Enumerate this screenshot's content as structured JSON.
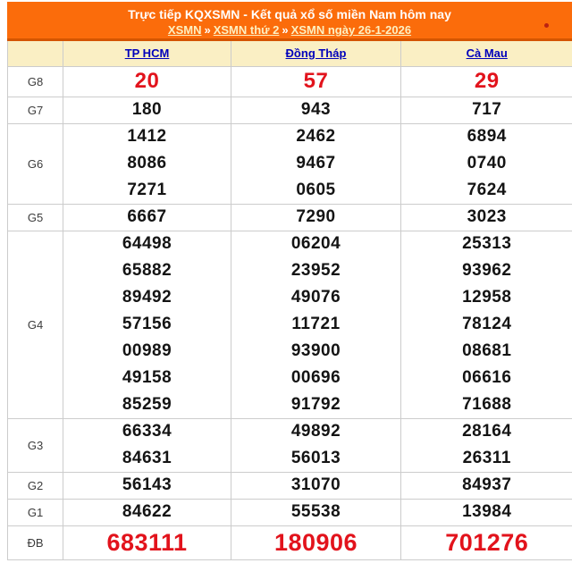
{
  "header": {
    "title": "Trực tiếp KQXSMN - Kết quả xổ số miền Nam hôm nay",
    "separator": "»",
    "breadcrumb": [
      {
        "label": "XSMN"
      },
      {
        "label": "XSMN thứ 2"
      },
      {
        "label": "XSMN ngày 26-1-2026"
      }
    ]
  },
  "table": {
    "columns": [
      "TP HCM",
      "Đồng Tháp",
      "Cà Mau"
    ],
    "groups": [
      {
        "label": "G8",
        "style": "g8",
        "rows": [
          [
            "20",
            "57",
            "29"
          ]
        ]
      },
      {
        "label": "G7",
        "style": "",
        "rows": [
          [
            "180",
            "943",
            "717"
          ]
        ]
      },
      {
        "label": "G6",
        "style": "",
        "rows": [
          [
            "1412",
            "2462",
            "6894"
          ],
          [
            "8086",
            "9467",
            "0740"
          ],
          [
            "7271",
            "0605",
            "7624"
          ]
        ]
      },
      {
        "label": "G5",
        "style": "",
        "rows": [
          [
            "6667",
            "7290",
            "3023"
          ]
        ]
      },
      {
        "label": "G4",
        "style": "",
        "rows": [
          [
            "64498",
            "06204",
            "25313"
          ],
          [
            "65882",
            "23952",
            "93962"
          ],
          [
            "89492",
            "49076",
            "12958"
          ],
          [
            "57156",
            "11721",
            "78124"
          ],
          [
            "00989",
            "93900",
            "08681"
          ],
          [
            "49158",
            "00696",
            "06616"
          ],
          [
            "85259",
            "91792",
            "71688"
          ]
        ]
      },
      {
        "label": "G3",
        "style": "",
        "rows": [
          [
            "66334",
            "49892",
            "28164"
          ],
          [
            "84631",
            "56013",
            "26311"
          ]
        ]
      },
      {
        "label": "G2",
        "style": "",
        "rows": [
          [
            "56143",
            "31070",
            "84937"
          ]
        ]
      },
      {
        "label": "G1",
        "style": "",
        "rows": [
          [
            "84622",
            "55538",
            "13984"
          ]
        ]
      },
      {
        "label": "ĐB",
        "style": "db",
        "rows": [
          [
            "683111",
            "180906",
            "701276"
          ]
        ]
      }
    ]
  },
  "colors": {
    "orange": "#fb6c0b",
    "orange-dark": "#d45500",
    "cream": "#faefc4",
    "link-blue": "#0000bb",
    "accent-red": "#e2131c",
    "ink": "#141414",
    "label-gray": "#3c3c3c",
    "border": "#cccccc"
  }
}
